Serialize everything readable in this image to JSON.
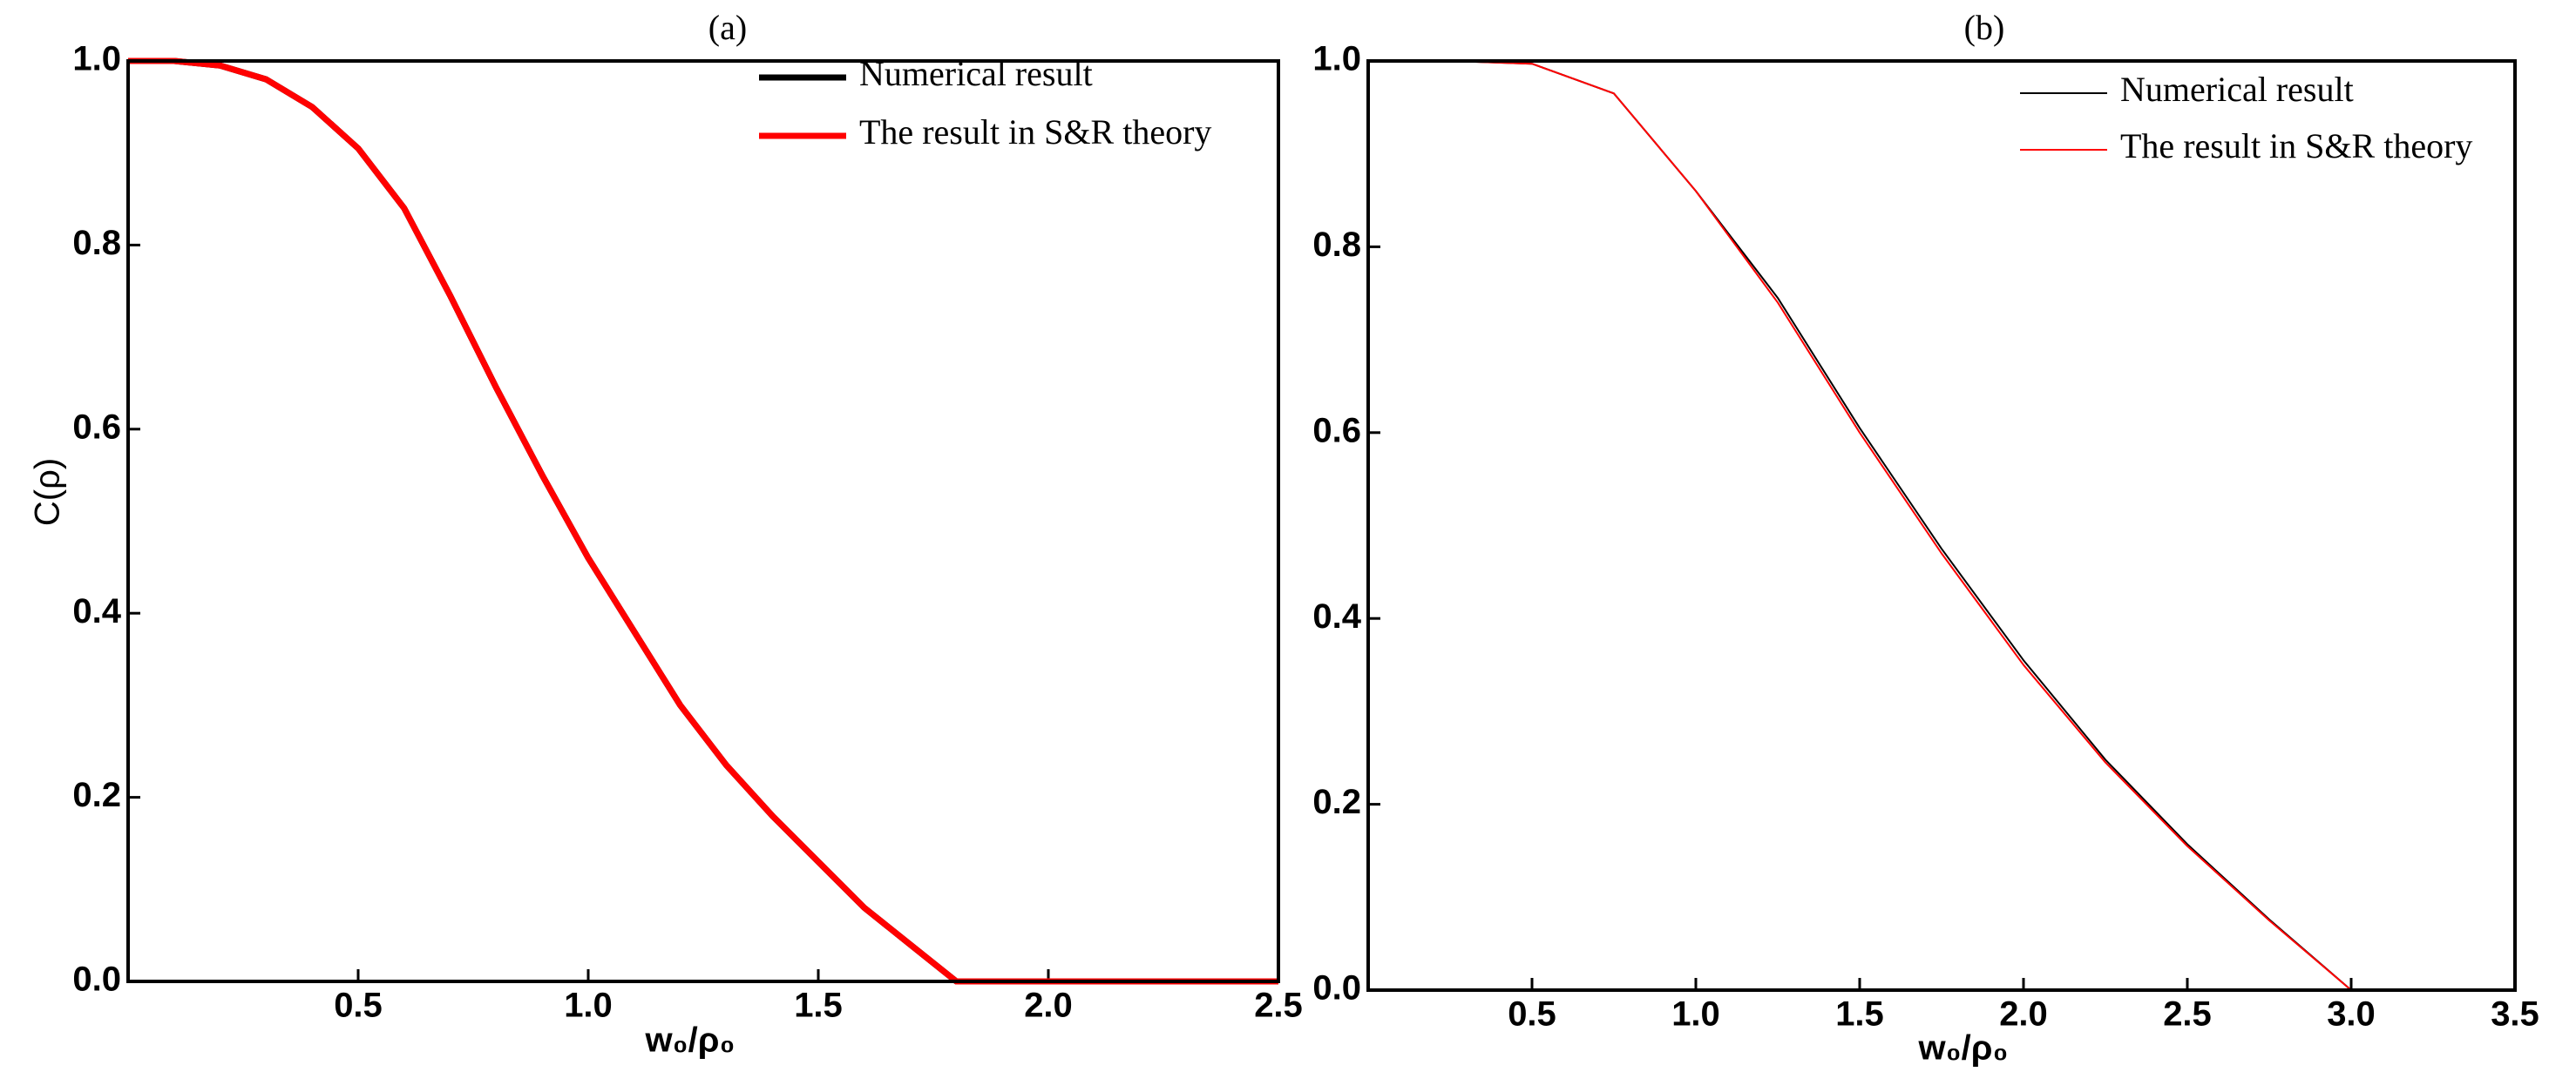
{
  "chart_data": [
    {
      "type": "line",
      "title": "(a)",
      "x_label": "w₀/ρ₀",
      "y_label": "C(ρ)",
      "x": [
        0,
        0.1,
        0.2,
        0.3,
        0.4,
        0.5,
        0.6,
        0.7,
        0.8,
        0.9,
        1.0,
        1.1,
        1.2,
        1.3,
        1.4,
        1.5,
        1.6,
        1.7,
        1.8,
        2.0,
        2.5
      ],
      "series": [
        {
          "name": "Numerical result",
          "color": "#000000",
          "values": [
            1,
            1,
            0.995,
            0.98,
            0.95,
            0.905,
            0.84,
            0.745,
            0.645,
            0.55,
            0.46,
            0.38,
            0.3,
            0.235,
            0.18,
            0.13,
            0.08,
            0.04,
            0,
            0,
            0
          ]
        },
        {
          "name": "The result in S&R theory",
          "color": "#ff0000",
          "values": [
            1,
            1,
            0.995,
            0.98,
            0.95,
            0.905,
            0.84,
            0.745,
            0.645,
            0.55,
            0.46,
            0.38,
            0.3,
            0.235,
            0.18,
            0.13,
            0.08,
            0.04,
            0,
            0,
            0
          ]
        }
      ],
      "xlim": [
        0,
        2.5
      ],
      "ylim": [
        0,
        1
      ],
      "xticks": [
        0.5,
        {
          "value": 1,
          "label": "1.0"
        },
        1.5,
        {
          "value": 2,
          "label": "2.0"
        },
        2.5
      ],
      "yticks": [
        {
          "value": 0,
          "label": "0.0"
        },
        0.2,
        0.4,
        0.6,
        0.8,
        {
          "value": 1,
          "label": "1.0"
        }
      ],
      "legend": "upper right"
    },
    {
      "type": "line",
      "title": "(b)",
      "x_label": "w₀/ρ₀",
      "x": [
        0,
        0.25,
        0.5,
        0.75,
        1.0,
        1.25,
        1.5,
        1.75,
        2.0,
        2.25,
        2.5,
        2.75,
        3.0
      ],
      "series": [
        {
          "name": "Numerical result",
          "color": "#000000",
          "values": [
            1,
            1,
            0.997,
            0.965,
            0.86,
            0.745,
            0.605,
            0.475,
            0.355,
            0.248,
            0.157,
            0.076,
            0
          ]
        },
        {
          "name": "The result in S&R theory",
          "color": "#ff0000",
          "values": [
            1,
            1,
            0.997,
            0.965,
            0.86,
            0.74,
            0.6,
            0.47,
            0.35,
            0.245,
            0.155,
            0.075,
            0
          ]
        }
      ],
      "xlim": [
        0,
        3.5
      ],
      "ylim": [
        0,
        1
      ],
      "xticks": [
        0.5,
        {
          "value": 1,
          "label": "1.0"
        },
        1.5,
        {
          "value": 2,
          "label": "2.0"
        },
        2.5,
        {
          "value": 3,
          "label": "3.0"
        },
        3.5
      ],
      "yticks": [
        {
          "value": 0,
          "label": "0.0"
        },
        0.2,
        0.4,
        0.6,
        0.8,
        {
          "value": 1,
          "label": "1.0"
        }
      ],
      "legend": "upper right"
    }
  ]
}
